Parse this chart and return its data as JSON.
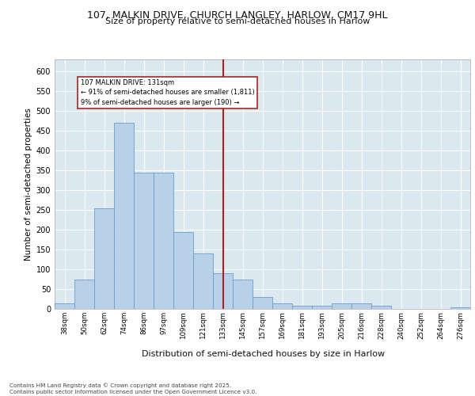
{
  "title_line1": "107, MALKIN DRIVE, CHURCH LANGLEY, HARLOW, CM17 9HL",
  "title_line2": "Size of property relative to semi-detached houses in Harlow",
  "xlabel": "Distribution of semi-detached houses by size in Harlow",
  "ylabel": "Number of semi-detached properties",
  "footer": "Contains HM Land Registry data © Crown copyright and database right 2025.\nContains public sector information licensed under the Open Government Licence v3.0.",
  "bin_labels": [
    "38sqm",
    "50sqm",
    "62sqm",
    "74sqm",
    "86sqm",
    "97sqm",
    "109sqm",
    "121sqm",
    "133sqm",
    "145sqm",
    "157sqm",
    "169sqm",
    "181sqm",
    "193sqm",
    "205sqm",
    "216sqm",
    "228sqm",
    "240sqm",
    "252sqm",
    "264sqm",
    "276sqm"
  ],
  "bar_values": [
    15,
    75,
    255,
    470,
    345,
    345,
    195,
    140,
    90,
    75,
    30,
    15,
    8,
    8,
    15,
    15,
    8,
    0,
    0,
    0,
    5
  ],
  "bar_color": "#b8d0e8",
  "bar_edge_color": "#6a9fc8",
  "background_color": "#dce8f0",
  "grid_color": "#ffffff",
  "vline_color": "#aa2222",
  "annotation_title": "107 MALKIN DRIVE: 131sqm",
  "annotation_line1": "← 91% of semi-detached houses are smaller (1,811)",
  "annotation_line2": "9% of semi-detached houses are larger (190) →",
  "annotation_box_color": "#ffffff",
  "annotation_box_edge": "#aa2222",
  "ylim": [
    0,
    630
  ],
  "yticks": [
    0,
    50,
    100,
    150,
    200,
    250,
    300,
    350,
    400,
    450,
    500,
    550,
    600
  ],
  "vline_bin_index": 8
}
